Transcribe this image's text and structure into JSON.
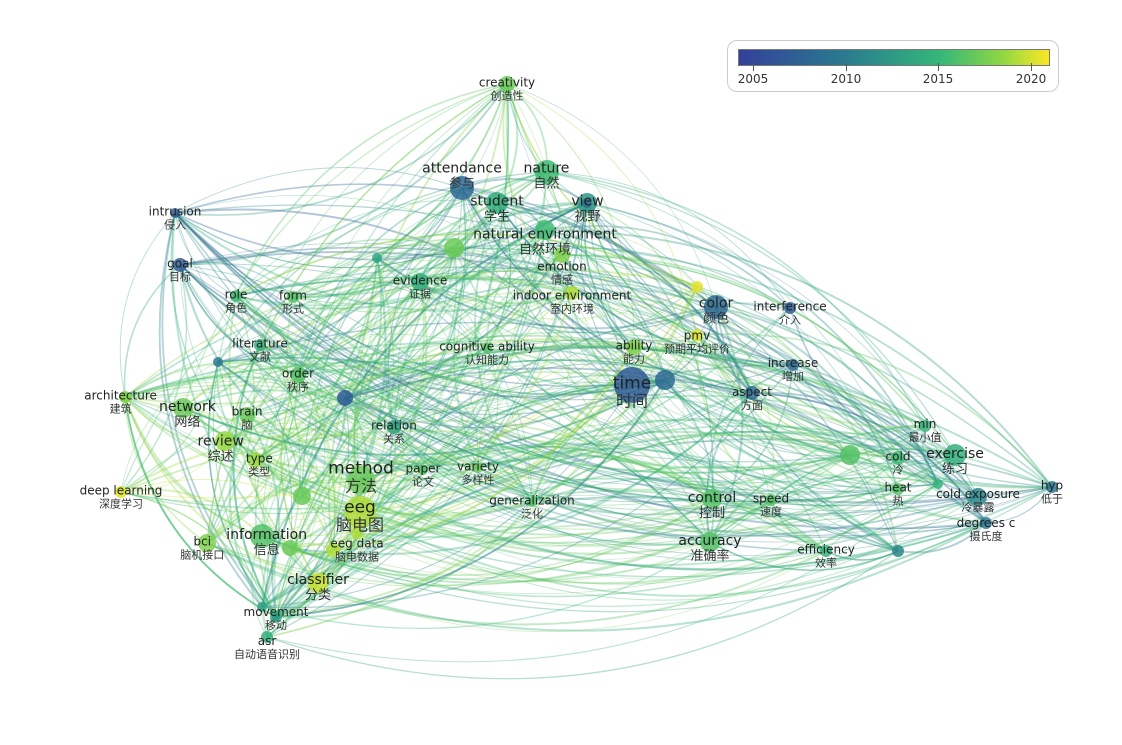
{
  "legend": {
    "ticks": [
      "2005",
      "2010",
      "2015",
      "2020"
    ],
    "range": [
      2004,
      2021
    ],
    "colors": [
      "#33409a",
      "#2a7c8f",
      "#35b779",
      "#90d743",
      "#fde725"
    ]
  },
  "nodes": [
    {
      "en": "creativity",
      "zh": "创造性",
      "year": 2015
    },
    {
      "en": "attendance",
      "zh": "参与",
      "year": 2007
    },
    {
      "en": "nature",
      "zh": "自然",
      "year": 2013
    },
    {
      "en": "student",
      "zh": "学生",
      "year": 2012
    },
    {
      "en": "view",
      "zh": "视野",
      "year": 2010
    },
    {
      "en": "natural environment",
      "zh": "自然环境",
      "year": 2013
    },
    {
      "en": "emotion",
      "zh": "情感",
      "year": 2016
    },
    {
      "en": "evidence",
      "zh": "证据",
      "year": 2012
    },
    {
      "en": "intrusion",
      "zh": "侵入",
      "year": 2006
    },
    {
      "en": "goal",
      "zh": "目标",
      "year": 2006
    },
    {
      "en": "role",
      "zh": "角色",
      "year": 2013
    },
    {
      "en": "form",
      "zh": "形式",
      "year": 2014
    },
    {
      "en": "indoor environment",
      "zh": "室内环境",
      "year": 2018
    },
    {
      "en": "color",
      "zh": "颜色",
      "year": 2007
    },
    {
      "en": "interference",
      "zh": "介入",
      "year": 2006
    },
    {
      "en": "pmv",
      "zh": "预期平均评价",
      "year": 2020
    },
    {
      "en": "ability",
      "zh": "能力",
      "year": 2016
    },
    {
      "en": "cognitive ability",
      "zh": "认知能力",
      "year": 2014
    },
    {
      "en": "literature",
      "zh": "文献",
      "year": 2012
    },
    {
      "en": "architecture",
      "zh": "建筑",
      "year": 2016
    },
    {
      "en": "order",
      "zh": "秩序",
      "year": 2014
    },
    {
      "en": "time",
      "zh": "时间",
      "year": 2006
    },
    {
      "en": "increase",
      "zh": "增加",
      "year": 2007
    },
    {
      "en": "aspect",
      "zh": "方面",
      "year": 2007
    },
    {
      "en": "network",
      "zh": "网络",
      "year": 2015
    },
    {
      "en": "brain",
      "zh": "脑",
      "year": 2015
    },
    {
      "en": "relation",
      "zh": "关系",
      "year": 2011
    },
    {
      "en": "review",
      "zh": "综述",
      "year": 2017
    },
    {
      "en": "type",
      "zh": "类型",
      "year": 2017
    },
    {
      "en": "method",
      "zh": "方法",
      "year": 2015
    },
    {
      "en": "paper",
      "zh": "论文",
      "year": 2014
    },
    {
      "en": "variety",
      "zh": "多样性",
      "year": 2015
    },
    {
      "en": "eeg",
      "zh": "脑电图",
      "year": 2018
    },
    {
      "en": "generalization",
      "zh": "泛化",
      "year": 2014
    },
    {
      "en": "control",
      "zh": "控制",
      "year": 2014
    },
    {
      "en": "speed",
      "zh": "速度",
      "year": 2014
    },
    {
      "en": "min",
      "zh": "最小值",
      "year": 2012
    },
    {
      "en": "exercise",
      "zh": "练习",
      "year": 2012
    },
    {
      "en": "cold",
      "zh": "冷",
      "year": 2013
    },
    {
      "en": "heat",
      "zh": "热",
      "year": 2014
    },
    {
      "en": "cold exposure",
      "zh": "冷暴露",
      "year": 2009
    },
    {
      "en": "hyp",
      "zh": "低于",
      "year": 2008
    },
    {
      "en": "degrees c",
      "zh": "摄氏度",
      "year": 2008
    },
    {
      "en": "deep learning",
      "zh": "深度学习",
      "year": 2020
    },
    {
      "en": "information",
      "zh": "信息",
      "year": 2014
    },
    {
      "en": "bci",
      "zh": "脑机接口",
      "year": 2016
    },
    {
      "en": "eeg data",
      "zh": "脑电数据",
      "year": 2018
    },
    {
      "en": "accuracy",
      "zh": "准确率",
      "year": 2014
    },
    {
      "en": "efficiency",
      "zh": "效率",
      "year": 2012
    },
    {
      "en": "classifier",
      "zh": "分类",
      "year": 2019
    },
    {
      "en": "movement",
      "zh": "移动",
      "year": 2012
    },
    {
      "en": "asr",
      "zh": "自动语音识别",
      "year": 2012
    }
  ],
  "unlabeled_node_years": [
    2014,
    2009,
    2007,
    2006,
    2008,
    2015,
    2015,
    2015,
    2011,
    2012,
    2011,
    2010,
    2007,
    2018,
    2020,
    2016
  ]
}
